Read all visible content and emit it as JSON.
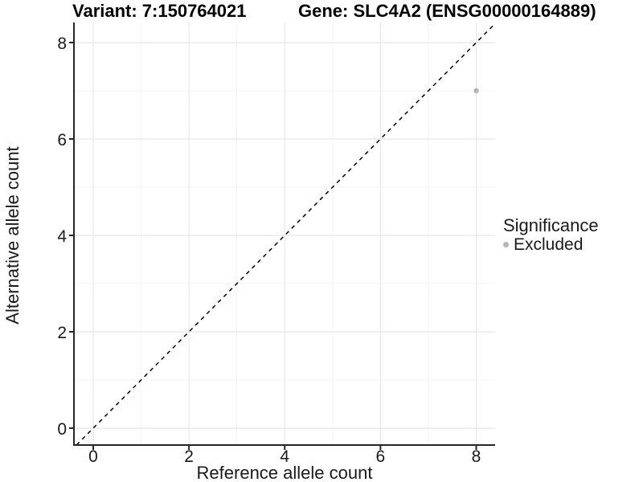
{
  "figure": {
    "title_left": "Variant: 7:150764021",
    "title_right": "Gene: SLC4A2 (ENSG00000164889)"
  },
  "chart_data": {
    "type": "scatter",
    "title": "Variant: 7:150764021 | Gene: SLC4A2 (ENSG00000164889)",
    "xlabel": "Reference allele count",
    "ylabel": "Alternative allele count",
    "xticks": [
      0,
      2,
      4,
      6,
      8
    ],
    "yticks": [
      0,
      2,
      4,
      6,
      8
    ],
    "xminor": [
      1,
      3,
      5,
      7
    ],
    "yminor": [
      1,
      3,
      5,
      7
    ],
    "xlim": [
      -0.4,
      8.4
    ],
    "ylim": [
      -0.35,
      8.42
    ],
    "grid": "major+minor",
    "reference_line": {
      "type": "identity",
      "equation": "y = x",
      "style": "dashed",
      "color": "#000000"
    },
    "series": [
      {
        "name": "Excluded",
        "color": "#b4b4b4",
        "points": [
          {
            "x": 8,
            "y": 7
          }
        ]
      }
    ],
    "legend": {
      "title": "Significance",
      "position": "right",
      "items": [
        {
          "label": "Excluded",
          "color": "#b4b4b4"
        }
      ]
    },
    "colors": {
      "background": "#ffffff",
      "axis_line": "#262626",
      "tick_label": "#1a1a1a",
      "grid_major": "#e8e8e8",
      "grid_minor": "#f3f3f3"
    }
  }
}
